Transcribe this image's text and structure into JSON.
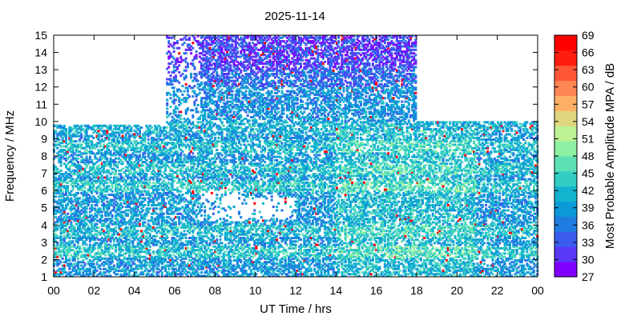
{
  "chart_data": {
    "type": "heatmap",
    "title": "2025-11-14",
    "xlabel": "UT Time / hrs",
    "ylabel": "Frequency / MHz",
    "colorbar_label": "Most Probable Amplitude MPA / dB",
    "xlim": [
      0,
      24
    ],
    "ylim": [
      1,
      15
    ],
    "xticks": [
      "00",
      "02",
      "04",
      "06",
      "08",
      "10",
      "12",
      "14",
      "16",
      "18",
      "20",
      "22",
      "00"
    ],
    "yticks": [
      "1",
      "2",
      "3",
      "4",
      "5",
      "6",
      "7",
      "8",
      "9",
      "10",
      "11",
      "12",
      "13",
      "14",
      "15"
    ],
    "colorbar": {
      "min": 27,
      "max": 69,
      "ticks": [
        "69",
        "66",
        "63",
        "60",
        "57",
        "54",
        "51",
        "48",
        "45",
        "42",
        "39",
        "36",
        "33",
        "30",
        "27"
      ],
      "colors": [
        "#7f00ff",
        "#5a38f8",
        "#3a5dee",
        "#1f7de1",
        "#0b9ad8",
        "#13b3cf",
        "#33cdc4",
        "#5ee0b6",
        "#8ef0a3",
        "#bdf193",
        "#e0d67f",
        "#ffb066",
        "#ff8552",
        "#ff5636",
        "#ff1d10",
        "#ff0000"
      ]
    },
    "grid": false,
    "data_extent": {
      "night_max_mhz_before": 9.8,
      "night_max_mhz_after": 10.0,
      "day_max_mhz": 15.0,
      "day_start_hr": 5.6,
      "day_end_hr": 18.0
    }
  }
}
